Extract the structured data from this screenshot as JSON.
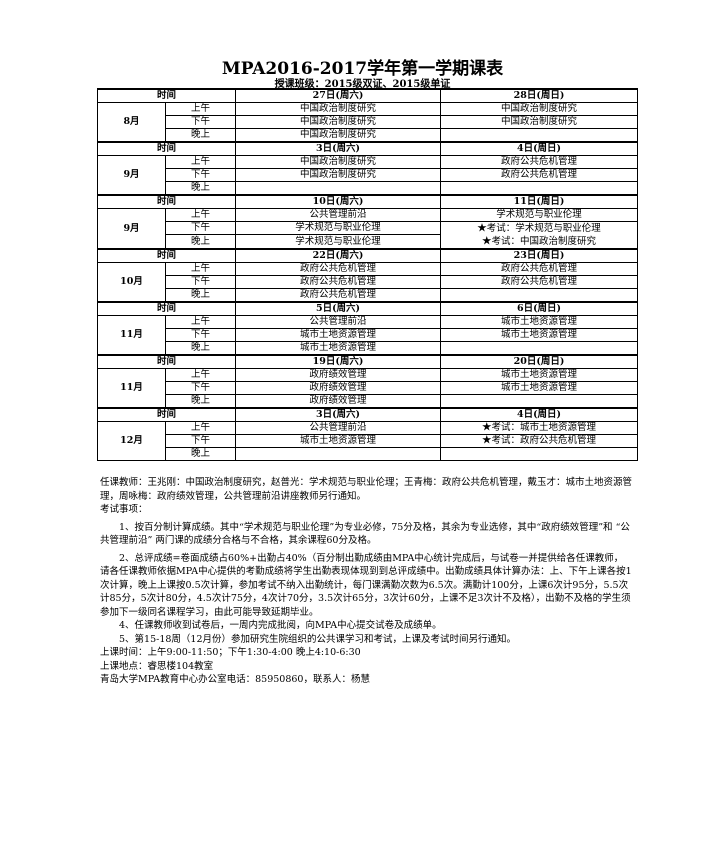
{
  "title": "MPA2016-2017学年第一学期课表",
  "subtitle": "授课班级：2015级双证、2015级单证",
  "time_label": "时间",
  "periods": [
    "上午",
    "下午",
    "晚上"
  ],
  "blocks": [
    {
      "month": "8月",
      "sat": "27日(周六)",
      "sun": "28日(周日)",
      "sat_classes": [
        "中国政治制度研究",
        "中国政治制度研究",
        "中国政治制度研究"
      ],
      "sun_classes": [
        "中国政治制度研究",
        "中国政治制度研究",
        ""
      ]
    },
    {
      "month": "9月",
      "sat": "3日(周六)",
      "sun": "4日(周日)",
      "sat_classes": [
        "中国政治制度研究",
        "中国政治制度研究",
        ""
      ],
      "sun_classes": [
        "政府公共危机管理",
        "政府公共危机管理",
        ""
      ]
    },
    {
      "month": "9月",
      "sat": "10日(周六)",
      "sun": "11日(周日)",
      "sat_classes": [
        "公共管理前沿",
        "学术规范与职业伦理",
        "学术规范与职业伦理"
      ],
      "sun_classes": [
        "学术规范与职业伦理"
      ],
      "sun_merged": {
        "start": 1,
        "lines": [
          "★考试：学术规范与职业伦理",
          "★考试：中国政治制度研究"
        ]
      }
    },
    {
      "month": "10月",
      "sat": "22日(周六)",
      "sun": "23日(周日)",
      "sat_classes": [
        "政府公共危机管理",
        "政府公共危机管理",
        "政府公共危机管理"
      ],
      "sun_classes": [
        "政府公共危机管理",
        "政府公共危机管理",
        ""
      ]
    },
    {
      "month": "11月",
      "sat": "5日(周六)",
      "sun": "6日(周日)",
      "sat_classes": [
        "公共管理前沿",
        "城市土地资源管理",
        "城市土地资源管理"
      ],
      "sun_classes": [
        "城市土地资源管理",
        "城市土地资源管理",
        ""
      ]
    },
    {
      "month": "11月",
      "sat": "19日(周六)",
      "sun": "20日(周日)",
      "sat_classes": [
        "政府绩效管理",
        "政府绩效管理",
        "政府绩效管理"
      ],
      "sun_classes": [
        "城市土地资源管理",
        "城市土地资源管理",
        ""
      ]
    },
    {
      "month": "12月",
      "sat": "3日(周六)",
      "sun": "4日(周日)",
      "sat_classes": [
        "公共管理前沿",
        "城市土地资源管理",
        ""
      ],
      "sun_classes": [
        "★考试：城市土地资源管理",
        "★考试：政府公共危机管理",
        ""
      ]
    }
  ],
  "notes": {
    "teachers": "任课教师：王兆刚：中国政治制度研究，赵普光：学术规范与职业伦理；王青梅：政府公共危机管理，戴玉才：城市土地资源管理，周咏梅：政府绩效管理，公共管理前沿讲座教师另行通知。",
    "exam_heading": "考试事项：",
    "item1": "1、按百分制计算成绩。其中“学术规范与职业伦理”为专业必修，75分及格，其余为专业选修，其中“政府绩效管理”和 “公共管理前沿” 两门课的成绩分合格与不合格，其余课程60分及格。",
    "item2": "2、总评成绩=卷面成绩占60%+出勤占40%（百分制出勤成绩由MPA中心统计完成后，与试卷一并提供给各任课教师，请各任课教师依据MPA中心提供的考勤成绩将学生出勤表现体现到到总评成绩中。出勤成绩具体计算办法：上、下午上课各按1次计算，晚上上课按0.5次计算，参加考试不纳入出勤统计，每门课满勤次数为6.5次。满勤计100分，上课6次计95分，5.5次计85分，5次计80分，4.5次计75分，4次计70分，3.5次计65分，3次计60分，上课不足3次计不及格），出勤不及格的学生须参加下一级同名课程学习，由此可能导致延期毕业。",
    "item4": "4、任课教师收到试卷后，一周内完成批阅，向MPA中心提交试卷及成绩单。",
    "item5": "5、第15-18周（12月份）参加研究生院组织的公共课学习和考试，上课及考试时间另行通知。",
    "class_time": "上课时间：上午9:00-11:50；下午1:30-4:00 晚上4:10-6:30",
    "location": "上课地点：睿思楼104教室",
    "contact": "青岛大学MPA教育中心办公室电话：85950860，联系人：杨慧"
  }
}
